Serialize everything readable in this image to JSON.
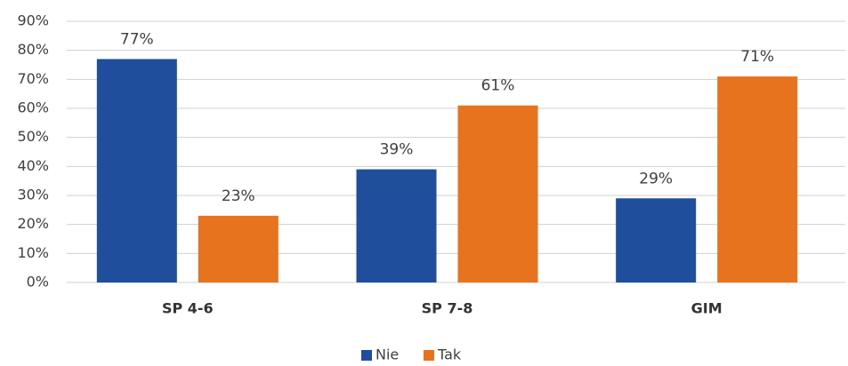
{
  "chart_data": {
    "type": "bar",
    "categories": [
      "SP 4-6",
      "SP 7-8",
      "GIM"
    ],
    "series": [
      {
        "name": "Nie",
        "color": "#1f4e9c",
        "values": [
          77,
          39,
          29
        ],
        "value_labels": [
          "77%",
          "39%",
          "29%"
        ]
      },
      {
        "name": "Tak",
        "color": "#e8731f",
        "values": [
          23,
          61,
          71
        ],
        "value_labels": [
          "23%",
          "61%",
          "71%"
        ]
      }
    ],
    "ylim": [
      0,
      90
    ],
    "yticks": [
      {
        "value": 0,
        "label": "0%"
      },
      {
        "value": 10,
        "label": "10%"
      },
      {
        "value": 20,
        "label": "20%"
      },
      {
        "value": 30,
        "label": "30%"
      },
      {
        "value": 40,
        "label": "40%"
      },
      {
        "value": 50,
        "label": "50%"
      },
      {
        "value": 60,
        "label": "60%"
      },
      {
        "value": 70,
        "label": "70%"
      },
      {
        "value": 80,
        "label": "80%"
      },
      {
        "value": 90,
        "label": "90%"
      }
    ],
    "grid": true,
    "legend": "bottom"
  }
}
